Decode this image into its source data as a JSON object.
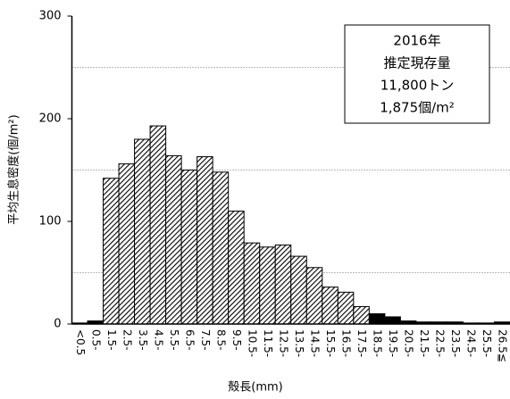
{
  "chart_data": {
    "type": "bar",
    "x_label": "殻長(mm)",
    "y_label": "平均生息密度(個/m²)",
    "annotation": [
      "2016年",
      "推定現存量",
      "11,800トン",
      "1,875個/m²"
    ],
    "categories": [
      "<0.5",
      "0.5-",
      "1.5-",
      "2.5-",
      "3.5-",
      "4.5-",
      "5.5-",
      "6.5-",
      "7.5-",
      "8.5-",
      "9.5-",
      "10.5-",
      "11.5-",
      "12.5-",
      "13.5-",
      "14.5-",
      "15.5-",
      "16.5-",
      "17.5-",
      "18.5-",
      "19.5-",
      "20.5-",
      "21.5-",
      "22.5-",
      "23.5-",
      "24.5-",
      "25.5-",
      "26.5≦"
    ],
    "values": [
      1,
      3,
      142,
      156,
      180,
      193,
      164,
      150,
      163,
      148,
      110,
      79,
      75,
      77,
      66,
      55,
      36,
      31,
      17,
      10,
      7,
      3,
      2,
      2,
      2,
      1,
      1,
      2
    ],
    "bar_styles": [
      "solid",
      "solid",
      "hatched",
      "hatched",
      "hatched",
      "hatched",
      "hatched",
      "hatched",
      "hatched",
      "hatched",
      "hatched",
      "hatched",
      "hatched",
      "hatched",
      "hatched",
      "hatched",
      "hatched",
      "hatched",
      "hatched",
      "solid",
      "solid",
      "solid",
      "solid",
      "solid",
      "solid",
      "solid",
      "solid",
      "solid"
    ],
    "color": "#000000",
    "ylim": [
      0,
      300
    ],
    "yticks": [
      0,
      100,
      200,
      300
    ],
    "minor_grid": [
      50,
      150,
      250
    ]
  }
}
